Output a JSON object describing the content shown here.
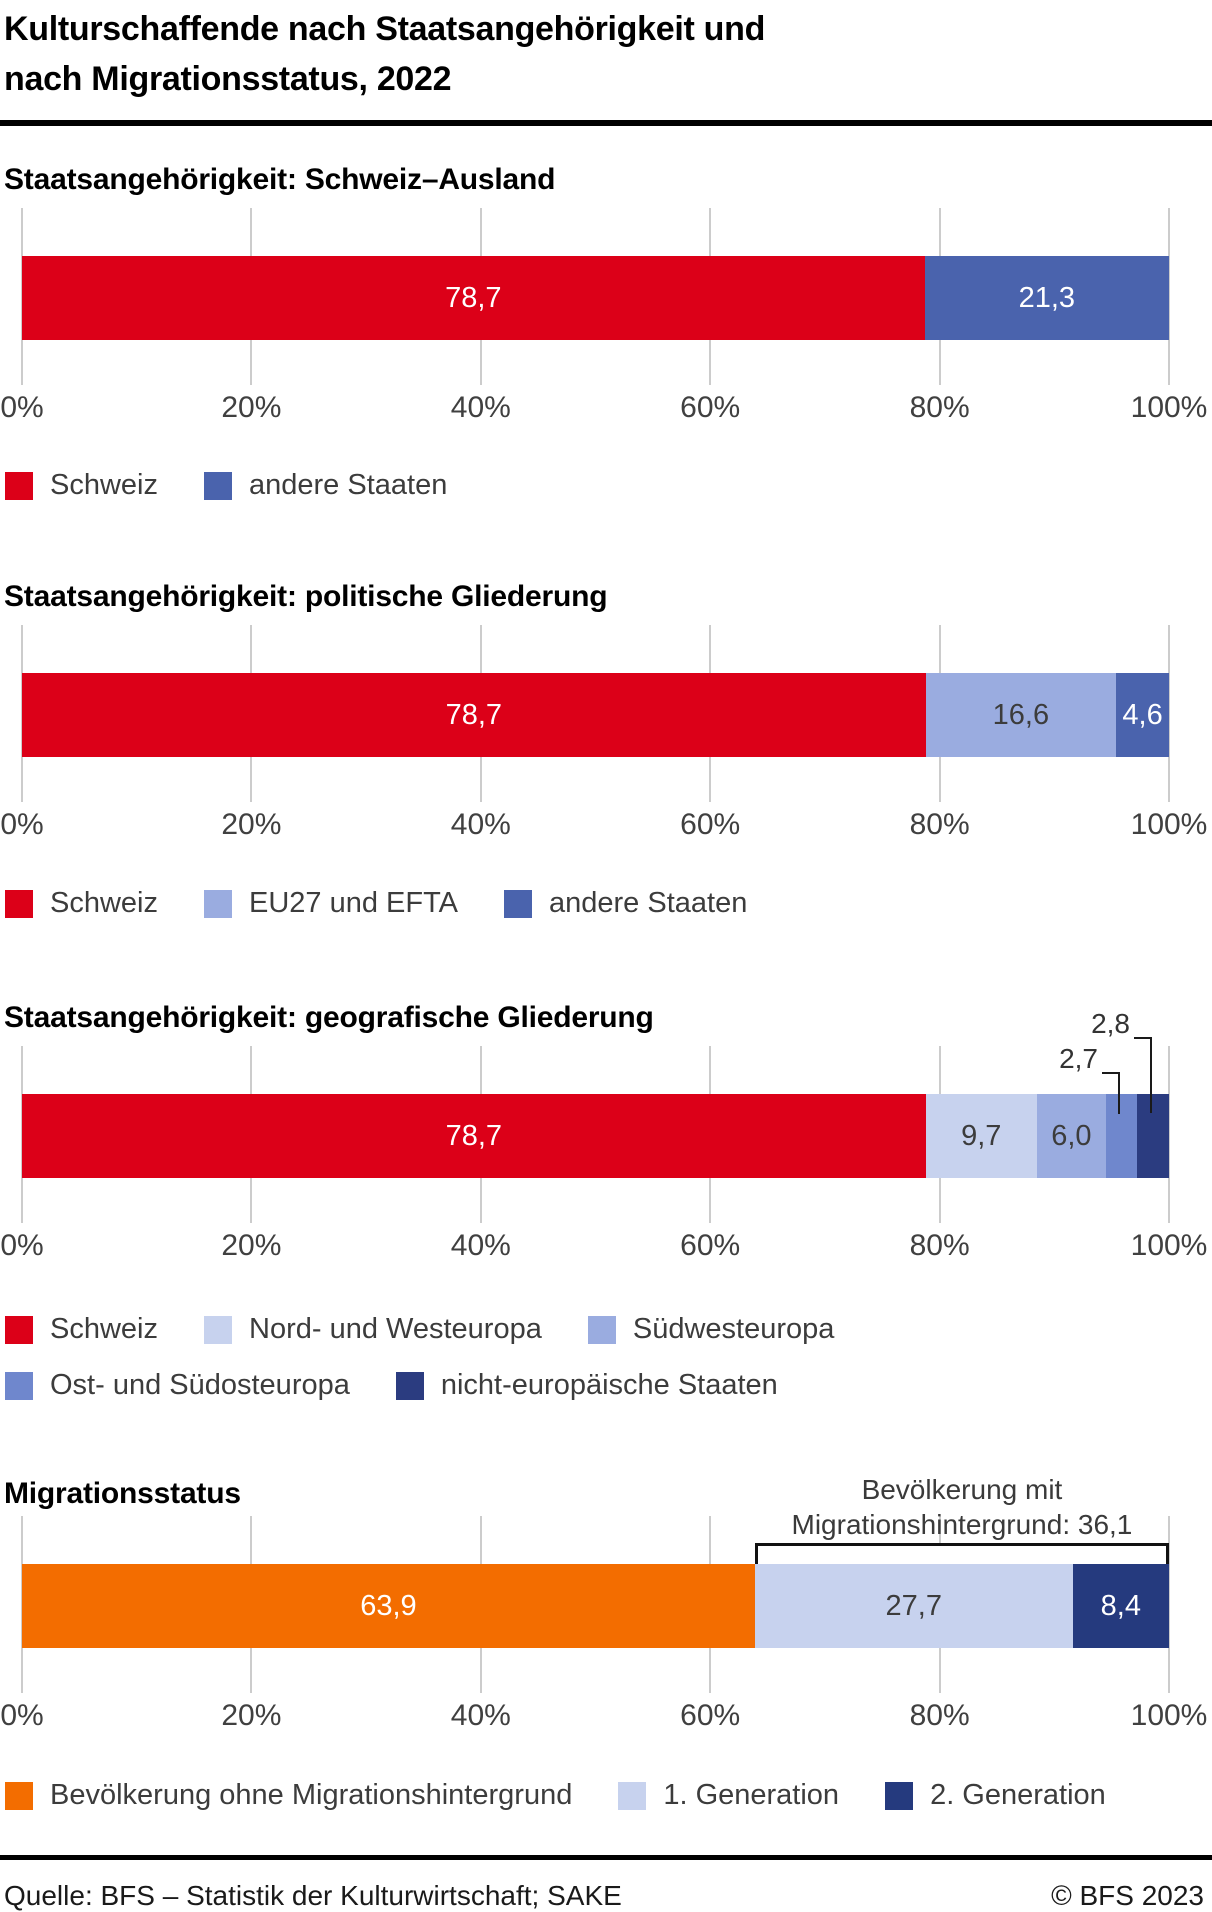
{
  "title": {
    "line1": "Kulturschaffende nach Staatsangehörigkeit und",
    "line2": "nach Migrationsstatus, 2022"
  },
  "footer": {
    "source": "Quelle: BFS – Statistik der Kulturwirtschaft; SAKE",
    "copyright": "© BFS 2023"
  },
  "chart_data": [
    {
      "type": "bar",
      "subtype": "horizontal-stacked-100pct",
      "heading": "Staatsangehörigkeit: Schweiz–Ausland",
      "axis_ticks": [
        "0%",
        "20%",
        "40%",
        "60%",
        "80%",
        "100%"
      ],
      "xlim": [
        0,
        100
      ],
      "grid": true,
      "legend_position": "bottom",
      "legend_rows": [
        [
          0,
          1
        ]
      ],
      "segments": [
        {
          "label": "Schweiz",
          "value": 78.7,
          "display": "78,7",
          "color": "#dc0018",
          "text_color": "#ffffff"
        },
        {
          "label": "andere Staaten",
          "value": 21.3,
          "display": "21,3",
          "color": "#4a63ad",
          "text_color": "#ffffff"
        }
      ]
    },
    {
      "type": "bar",
      "subtype": "horizontal-stacked-100pct",
      "heading": "Staatsangehörigkeit: politische Gliederung",
      "axis_ticks": [
        "0%",
        "20%",
        "40%",
        "60%",
        "80%",
        "100%"
      ],
      "xlim": [
        0,
        100
      ],
      "grid": true,
      "legend_position": "bottom",
      "legend_rows": [
        [
          0,
          1,
          2
        ]
      ],
      "segments": [
        {
          "label": "Schweiz",
          "value": 78.7,
          "display": "78,7",
          "color": "#dc0018",
          "text_color": "#ffffff"
        },
        {
          "label": "EU27 und EFTA",
          "value": 16.6,
          "display": "16,6",
          "color": "#9aace0",
          "text_color": "#3c3c3c"
        },
        {
          "label": "andere Staaten",
          "value": 4.6,
          "display": "4,6",
          "color": "#4a63ad",
          "text_color": "#ffffff"
        }
      ]
    },
    {
      "type": "bar",
      "subtype": "horizontal-stacked-100pct",
      "heading": "Staatsangehörigkeit: geografische Gliederung",
      "axis_ticks": [
        "0%",
        "20%",
        "40%",
        "60%",
        "80%",
        "100%"
      ],
      "xlim": [
        0,
        100
      ],
      "grid": true,
      "legend_position": "bottom",
      "legend_rows": [
        [
          0,
          1,
          2
        ],
        [
          3,
          4
        ]
      ],
      "segments": [
        {
          "label": "Schweiz",
          "value": 78.7,
          "display": "78,7",
          "color": "#dc0018",
          "text_color": "#ffffff"
        },
        {
          "label": "Nord- und Westeuropa",
          "value": 9.7,
          "display": "9,7",
          "color": "#c7d2ee",
          "text_color": "#3c3c3c"
        },
        {
          "label": "Südwesteuropa",
          "value": 6.0,
          "display": "6,0",
          "color": "#9aace0",
          "text_color": "#3c3c3c"
        },
        {
          "label": "Ost- und Südosteuropa",
          "value": 2.7,
          "display": "2,7",
          "color": "#6f87cd",
          "text_color": "#3c3c3c",
          "callout": true
        },
        {
          "label": "nicht-europäische Staaten",
          "value": 2.8,
          "display": "2,8",
          "color": "#2b3c80",
          "text_color": "#3c3c3c",
          "callout": true
        }
      ]
    },
    {
      "type": "bar",
      "subtype": "horizontal-stacked-100pct",
      "heading": "Migrationsstatus",
      "axis_ticks": [
        "0%",
        "20%",
        "40%",
        "60%",
        "80%",
        "100%"
      ],
      "xlim": [
        0,
        100
      ],
      "grid": true,
      "legend_position": "bottom",
      "legend_rows": [
        [
          0,
          1,
          2
        ]
      ],
      "annotation": {
        "line1": "Bevölkerung mit",
        "line2": "Migrationshintergrund: 36,1",
        "bracket_from": 63.9,
        "bracket_to": 100
      },
      "segments": [
        {
          "label": "Bevölkerung ohne Migrationshintergrund",
          "value": 63.9,
          "display": "63,9",
          "color": "#f36d00",
          "text_color": "#ffffff"
        },
        {
          "label": "1. Generation",
          "value": 27.7,
          "display": "27,7",
          "color": "#c7d2ee",
          "text_color": "#3c3c3c"
        },
        {
          "label": "2. Generation",
          "value": 8.4,
          "display": "8,4",
          "color": "#253a7e",
          "text_color": "#ffffff"
        }
      ]
    }
  ]
}
